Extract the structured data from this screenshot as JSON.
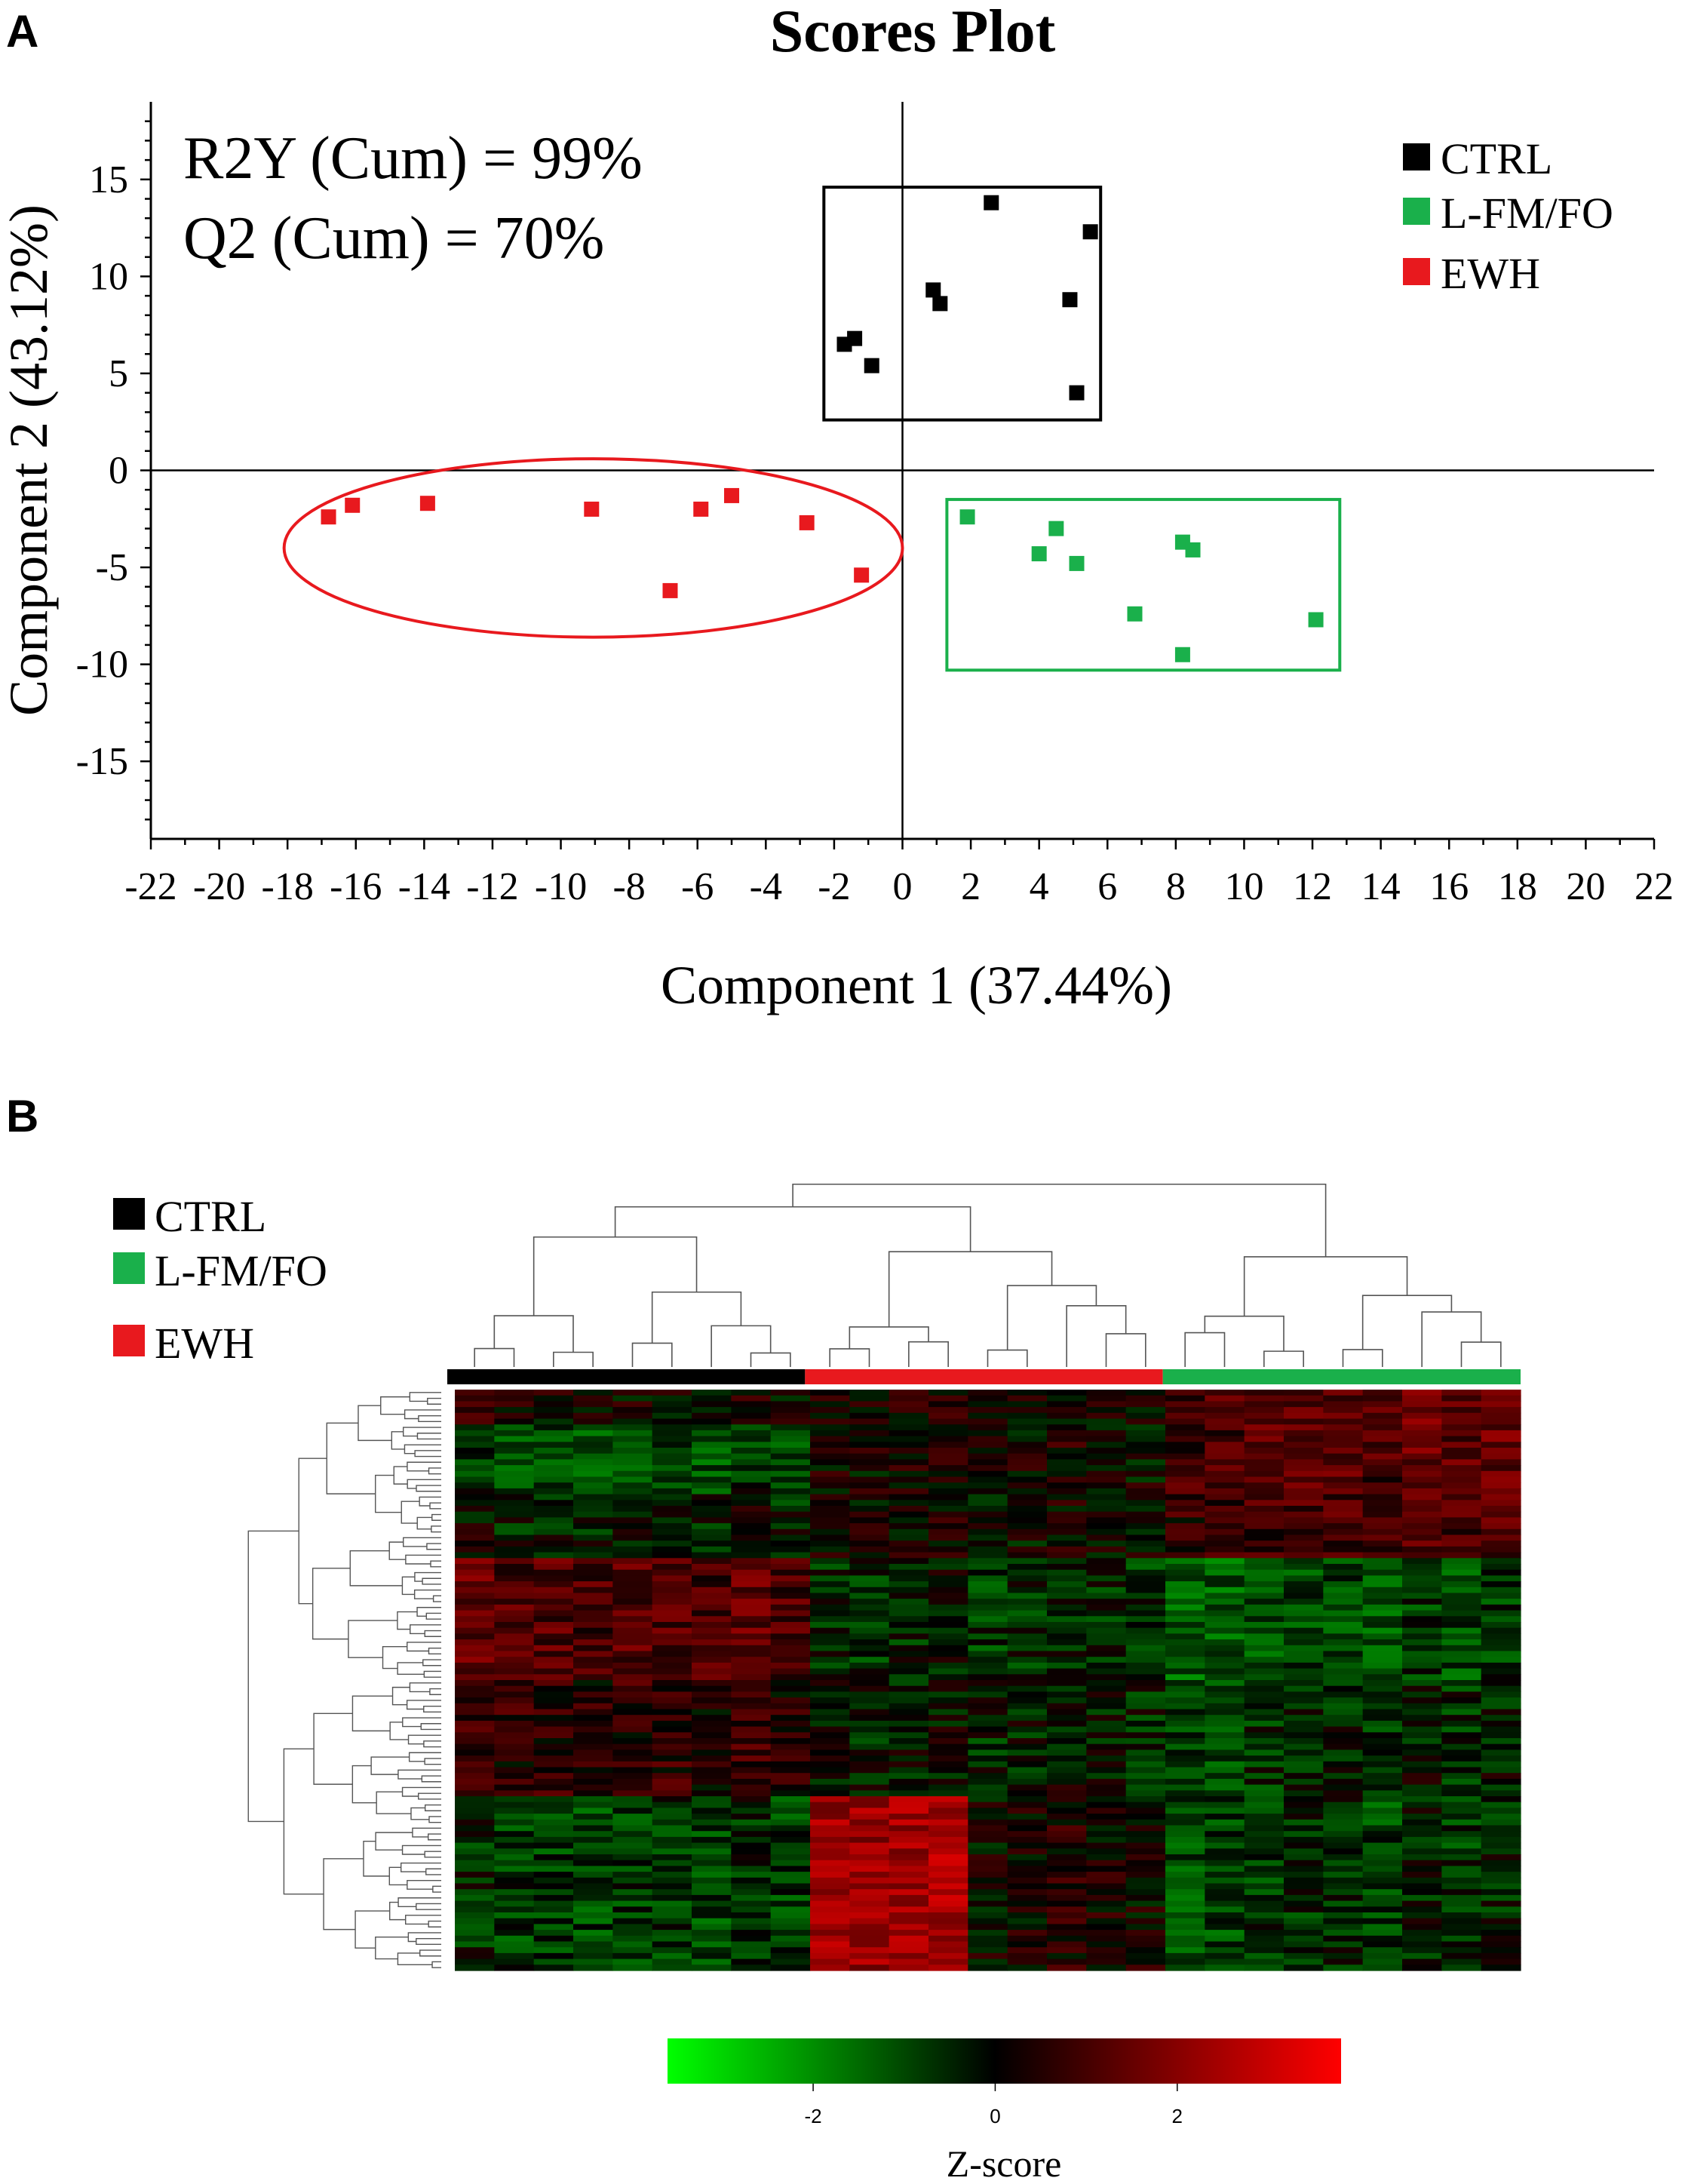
{
  "panels": {
    "a_label": "A",
    "b_label": "B"
  },
  "chart_data": [
    {
      "type": "scatter",
      "title": "Scores Plot",
      "xlabel": "Component 1 (37.44%)",
      "ylabel": "Component 2 (43.12%)",
      "xlim": [
        -22,
        22
      ],
      "ylim": [
        -19,
        19
      ],
      "x_ticks": [
        -22,
        -20,
        -18,
        -16,
        -14,
        -12,
        -10,
        -8,
        -6,
        -4,
        -2,
        0,
        2,
        4,
        6,
        8,
        10,
        12,
        14,
        16,
        18,
        20,
        22
      ],
      "y_ticks": [
        15,
        10,
        5,
        0,
        -5,
        -10,
        -15
      ],
      "annotations": [
        "R2Y (Cum) = 99%",
        "Q2 (Cum) = 70%"
      ],
      "legend": {
        "position": "top-right"
      },
      "grid": false,
      "series": [
        {
          "name": "CTRL",
          "color": "#000000",
          "enclosure": "rectangle",
          "enclosure_range": {
            "x": [
              -2.3,
              5.8
            ],
            "y": [
              2.6,
              14.6
            ]
          },
          "points": [
            {
              "x": -1.7,
              "y": 6.5
            },
            {
              "x": -1.4,
              "y": 6.8
            },
            {
              "x": -0.9,
              "y": 5.4
            },
            {
              "x": 0.9,
              "y": 9.3
            },
            {
              "x": 1.1,
              "y": 8.6
            },
            {
              "x": 2.6,
              "y": 13.8
            },
            {
              "x": 4.9,
              "y": 8.8
            },
            {
              "x": 5.5,
              "y": 12.3
            },
            {
              "x": 5.1,
              "y": 4.0
            }
          ]
        },
        {
          "name": "L-FM/FO",
          "color": "#1ab04b",
          "enclosure": "rectangle",
          "enclosure_range": {
            "x": [
              1.3,
              12.8
            ],
            "y": [
              -10.3,
              -1.5
            ]
          },
          "points": [
            {
              "x": 1.9,
              "y": -2.4
            },
            {
              "x": 4.0,
              "y": -4.3
            },
            {
              "x": 4.5,
              "y": -3.0
            },
            {
              "x": 5.1,
              "y": -4.8
            },
            {
              "x": 6.8,
              "y": -7.4
            },
            {
              "x": 8.2,
              "y": -3.7
            },
            {
              "x": 8.5,
              "y": -4.1
            },
            {
              "x": 8.2,
              "y": -9.5
            },
            {
              "x": 12.1,
              "y": -7.7
            }
          ]
        },
        {
          "name": "EWH",
          "color": "#e8191e",
          "enclosure": "ellipse",
          "enclosure_range": {
            "x": [
              -18.1,
              0.0
            ],
            "y": [
              -8.6,
              0.6
            ]
          },
          "points": [
            {
              "x": -16.8,
              "y": -2.4
            },
            {
              "x": -16.1,
              "y": -1.8
            },
            {
              "x": -13.9,
              "y": -1.7
            },
            {
              "x": -9.1,
              "y": -2.0
            },
            {
              "x": -5.9,
              "y": -2.0
            },
            {
              "x": -5.0,
              "y": -1.3
            },
            {
              "x": -2.8,
              "y": -2.7
            },
            {
              "x": -6.8,
              "y": -6.2
            },
            {
              "x": -1.2,
              "y": -5.4
            }
          ]
        }
      ]
    },
    {
      "type": "heatmap",
      "legend": {
        "position": "top-left",
        "entries": [
          {
            "name": "CTRL",
            "color": "#000000"
          },
          {
            "name": "L-FM/FO",
            "color": "#1ab04b"
          },
          {
            "name": "EWH",
            "color": "#e8191e"
          }
        ]
      },
      "column_groups": [
        {
          "name": "CTRL",
          "color": "#000000",
          "columns": 9
        },
        {
          "name": "EWH",
          "color": "#e8191e",
          "columns": 9
        },
        {
          "name": "L-FM/FO",
          "color": "#1ab04b",
          "columns": 9
        }
      ],
      "rows": 100,
      "colorbar": {
        "title": "Z-score",
        "ticks": [
          -2,
          0,
          2
        ],
        "range": [
          -3.6,
          3.8
        ],
        "low_color": "#00ff00",
        "mid_color": "#000000",
        "high_color": "#ff0000"
      }
    }
  ]
}
